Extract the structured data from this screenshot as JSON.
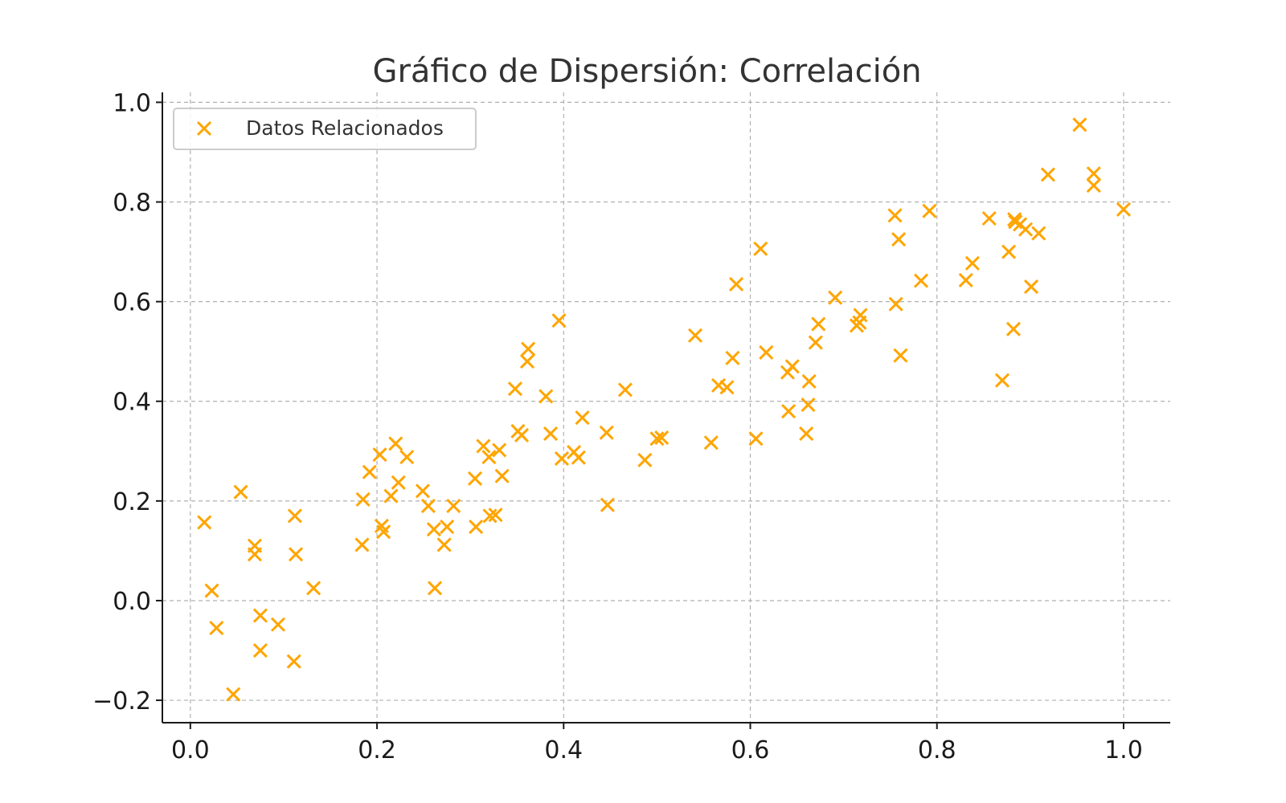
{
  "chart_data": {
    "type": "scatter",
    "title": "Gráfico de Dispersión: Correlación",
    "xlabel": "",
    "ylabel": "",
    "xlim": [
      -0.03,
      1.05
    ],
    "ylim": [
      -0.245,
      1.02
    ],
    "xticks": [
      0.0,
      0.2,
      0.4,
      0.6,
      0.8,
      1.0
    ],
    "xtick_labels": [
      "0.0",
      "0.2",
      "0.4",
      "0.6",
      "0.8",
      "1.0"
    ],
    "yticks": [
      -0.2,
      0.0,
      0.2,
      0.4,
      0.6,
      0.8,
      1.0
    ],
    "ytick_labels": [
      "−0.2",
      "0.0",
      "0.2",
      "0.4",
      "0.6",
      "0.8",
      "1.0"
    ],
    "grid": true,
    "legend_position": "top-left",
    "series": [
      {
        "name": "Datos Relacionados",
        "marker": "x",
        "color": "#FFA500",
        "points": [
          [
            0.015,
            0.157
          ],
          [
            0.023,
            0.02
          ],
          [
            0.028,
            -0.055
          ],
          [
            0.046,
            -0.188
          ],
          [
            0.054,
            0.218
          ],
          [
            0.069,
            0.11
          ],
          [
            0.069,
            0.093
          ],
          [
            0.075,
            -0.03
          ],
          [
            0.075,
            -0.1
          ],
          [
            0.094,
            -0.048
          ],
          [
            0.111,
            -0.122
          ],
          [
            0.112,
            0.17
          ],
          [
            0.113,
            0.093
          ],
          [
            0.132,
            0.025
          ],
          [
            0.184,
            0.112
          ],
          [
            0.185,
            0.203
          ],
          [
            0.192,
            0.258
          ],
          [
            0.203,
            0.293
          ],
          [
            0.205,
            0.15
          ],
          [
            0.207,
            0.138
          ],
          [
            0.215,
            0.21
          ],
          [
            0.22,
            0.315
          ],
          [
            0.223,
            0.237
          ],
          [
            0.232,
            0.288
          ],
          [
            0.249,
            0.22
          ],
          [
            0.255,
            0.19
          ],
          [
            0.261,
            0.143
          ],
          [
            0.262,
            0.025
          ],
          [
            0.272,
            0.112
          ],
          [
            0.275,
            0.148
          ],
          [
            0.282,
            0.19
          ],
          [
            0.305,
            0.245
          ],
          [
            0.306,
            0.148
          ],
          [
            0.314,
            0.31
          ],
          [
            0.32,
            0.288
          ],
          [
            0.321,
            0.17
          ],
          [
            0.327,
            0.172
          ],
          [
            0.331,
            0.302
          ],
          [
            0.334,
            0.25
          ],
          [
            0.348,
            0.425
          ],
          [
            0.351,
            0.34
          ],
          [
            0.355,
            0.332
          ],
          [
            0.361,
            0.48
          ],
          [
            0.362,
            0.505
          ],
          [
            0.381,
            0.41
          ],
          [
            0.386,
            0.335
          ],
          [
            0.395,
            0.562
          ],
          [
            0.398,
            0.285
          ],
          [
            0.411,
            0.298
          ],
          [
            0.416,
            0.287
          ],
          [
            0.42,
            0.367
          ],
          [
            0.446,
            0.337
          ],
          [
            0.447,
            0.192
          ],
          [
            0.466,
            0.423
          ],
          [
            0.487,
            0.282
          ],
          [
            0.5,
            0.325
          ],
          [
            0.505,
            0.327
          ],
          [
            0.541,
            0.532
          ],
          [
            0.558,
            0.317
          ],
          [
            0.566,
            0.432
          ],
          [
            0.575,
            0.428
          ],
          [
            0.581,
            0.487
          ],
          [
            0.585,
            0.635
          ],
          [
            0.606,
            0.325
          ],
          [
            0.611,
            0.706
          ],
          [
            0.617,
            0.498
          ],
          [
            0.64,
            0.458
          ],
          [
            0.641,
            0.38
          ],
          [
            0.645,
            0.47
          ],
          [
            0.66,
            0.335
          ],
          [
            0.662,
            0.393
          ],
          [
            0.663,
            0.44
          ],
          [
            0.67,
            0.518
          ],
          [
            0.673,
            0.555
          ],
          [
            0.691,
            0.608
          ],
          [
            0.714,
            0.552
          ],
          [
            0.717,
            0.558
          ],
          [
            0.718,
            0.573
          ],
          [
            0.755,
            0.773
          ],
          [
            0.756,
            0.595
          ],
          [
            0.759,
            0.725
          ],
          [
            0.761,
            0.492
          ],
          [
            0.783,
            0.642
          ],
          [
            0.792,
            0.782
          ],
          [
            0.831,
            0.643
          ],
          [
            0.838,
            0.677
          ],
          [
            0.856,
            0.767
          ],
          [
            0.87,
            0.442
          ],
          [
            0.877,
            0.7
          ],
          [
            0.882,
            0.545
          ],
          [
            0.883,
            0.765
          ],
          [
            0.884,
            0.76
          ],
          [
            0.889,
            0.755
          ],
          [
            0.895,
            0.745
          ],
          [
            0.901,
            0.63
          ],
          [
            0.909,
            0.737
          ],
          [
            0.919,
            0.855
          ],
          [
            0.953,
            0.955
          ],
          [
            0.968,
            0.857
          ],
          [
            0.968,
            0.833
          ],
          [
            1.0,
            0.785
          ]
        ]
      }
    ]
  }
}
